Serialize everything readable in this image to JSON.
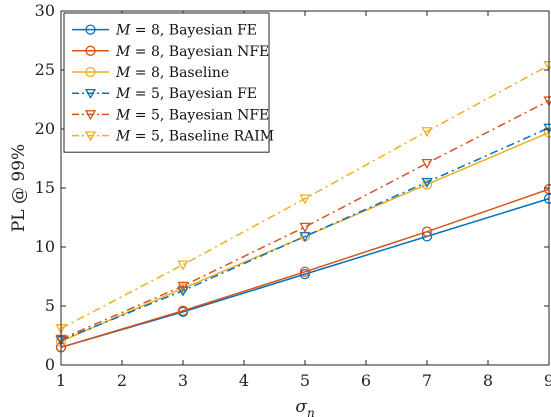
{
  "chart_data": {
    "type": "line",
    "title": "",
    "xlabel": "σn",
    "xlabel_main": "σ",
    "xlabel_sub": "n",
    "ylabel": "PL @ 99%",
    "xlim": [
      1,
      9
    ],
    "ylim": [
      0,
      30
    ],
    "xticks": [
      1,
      2,
      3,
      4,
      5,
      6,
      7,
      8,
      9
    ],
    "yticks": [
      0,
      5,
      10,
      15,
      20,
      25,
      30
    ],
    "x": [
      1,
      3,
      5,
      7,
      9
    ],
    "grid": false,
    "legend_position": "top-left",
    "series": [
      {
        "name": "M = 8, Bayesian FE",
        "legend_var": "M",
        "legend_rest": " = 8, Bayesian FE",
        "color": "#0072BD",
        "style": "solid",
        "marker": "circle",
        "values": [
          1.5,
          4.5,
          7.7,
          10.9,
          14.1
        ]
      },
      {
        "name": "M = 8, Bayesian NFE",
        "legend_var": "M",
        "legend_rest": " = 8, Bayesian NFE",
        "color": "#D95319",
        "style": "solid",
        "marker": "circle",
        "values": [
          1.5,
          4.6,
          7.9,
          11.3,
          14.9
        ]
      },
      {
        "name": "M = 8, Baseline",
        "legend_var": "M",
        "legend_rest": " = 8, Baseline",
        "color": "#EDB120",
        "style": "solid",
        "marker": "circle",
        "values": [
          2.0,
          6.5,
          10.9,
          15.3,
          19.7
        ]
      },
      {
        "name": "M = 5, Bayesian FE",
        "legend_var": "M",
        "legend_rest": " = 5, Bayesian FE",
        "color": "#0072BD",
        "style": "dashdot",
        "marker": "triangle-down",
        "values": [
          2.1,
          6.3,
          10.9,
          15.5,
          20.1
        ]
      },
      {
        "name": "M = 5, Bayesian NFE",
        "legend_var": "M",
        "legend_rest": " = 5, Bayesian NFE",
        "color": "#D95319",
        "style": "dashdot",
        "marker": "triangle-down",
        "values": [
          2.2,
          6.7,
          11.7,
          17.1,
          22.4
        ]
      },
      {
        "name": "M = 5, Baseline RAIM",
        "legend_var": "M",
        "legend_rest": " = 5, Baseline RAIM",
        "color": "#EDB120",
        "style": "dashdot",
        "marker": "triangle-down",
        "values": [
          3.1,
          8.5,
          14.1,
          19.8,
          25.4
        ]
      }
    ]
  }
}
